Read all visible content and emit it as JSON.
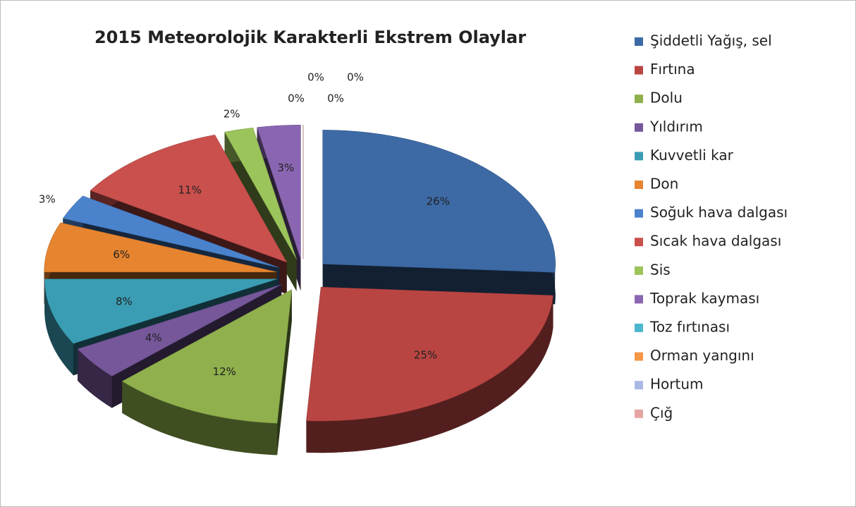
{
  "chart_data": {
    "type": "pie3d",
    "title": "2015 Meteorolojik Karakterli Ekstrem Olaylar",
    "categories": [
      "Şiddetli Yağış, sel",
      "Fırtına",
      "Dolu",
      "Yıldırım",
      "Kuvvetli kar",
      "Don",
      "Soğuk hava dalgası",
      "Sıcak hava dalgası",
      "Sis",
      "Toprak kayması",
      "Toz fırtınası",
      "Orman yangını",
      "Hortum",
      "Çığ"
    ],
    "values": [
      26,
      25,
      12,
      4,
      8,
      6,
      3,
      11,
      2,
      3,
      0,
      0,
      0,
      0
    ],
    "value_labels": [
      "26%",
      "25%",
      "12%",
      "4%",
      "8%",
      "6%",
      "3%",
      "11%",
      "2%",
      "3%",
      "0%",
      "0%",
      "0%",
      "0%"
    ],
    "colors": [
      "#3d6aa5",
      "#b94542",
      "#8fb04c",
      "#75579a",
      "#3a9db4",
      "#e6842f",
      "#4a82cc",
      "#c9504d",
      "#9bc45a",
      "#8a66b2",
      "#4bb8cf",
      "#f79646",
      "#a7b9e3",
      "#e6a5a4"
    ],
    "legend": "right"
  }
}
